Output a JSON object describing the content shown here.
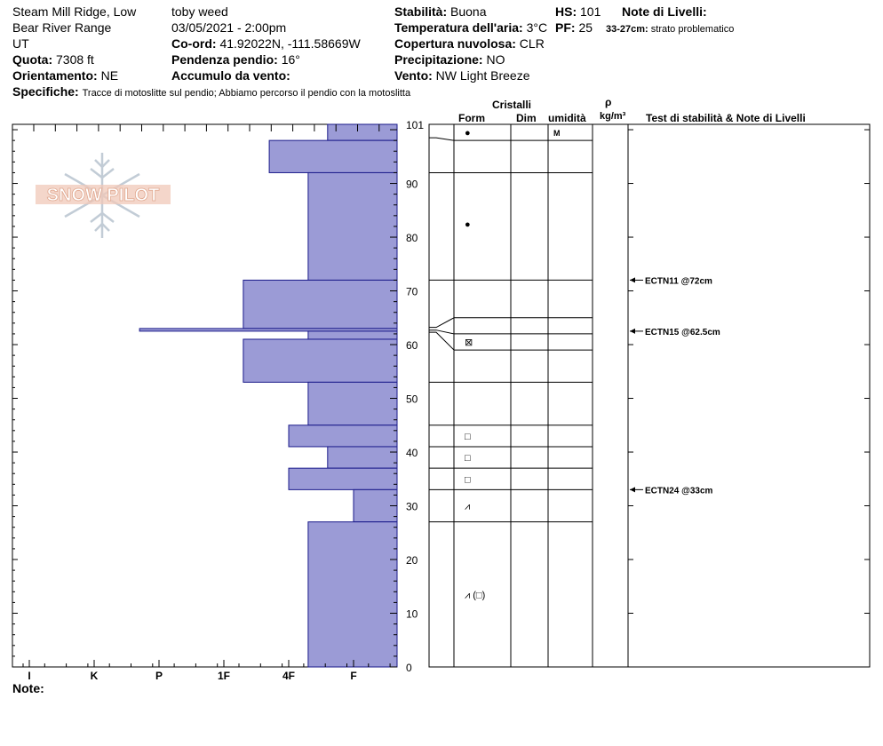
{
  "header": {
    "location": "Steam Mill Ridge, Low",
    "range": "Bear River Range",
    "state": "UT",
    "elevation_label": "Quota:",
    "elevation_value": "7308 ft",
    "aspect_label": "Orientamento:",
    "aspect_value": "NE",
    "observer": "toby weed",
    "datetime": "03/05/2021 - 2:00pm",
    "coord_label": "Co-ord:",
    "coord_value": "41.92022N, -111.58669W",
    "slope_label": "Pendenza pendio:",
    "slope_value": "16°",
    "wind_loading_label": "Accumulo da vento:",
    "wind_loading_value": "",
    "stability_label": "Stabilità:",
    "stability_value": "Buona",
    "air_temp_label": "Temperatura dell'aria:",
    "air_temp_value": "3°C",
    "cloud_label": "Copertura nuvolosa:",
    "cloud_value": "CLR",
    "precip_label": "Precipitazione:",
    "precip_value": "NO",
    "wind_label": "Vento:",
    "wind_value": "NW Light Breeze",
    "hs_label": "HS:",
    "hs_value": "101",
    "pf_label": "PF:",
    "pf_value": "25",
    "layer_notes_label": "Note di Livelli:",
    "layer_note_range": "33-27cm:",
    "layer_note_text": "strato problematico",
    "specifics_label": "Specifiche:",
    "specifics_value": "Tracce di motoslitte sul pendio; Abbiamo percorso il pendio con la motoslitta"
  },
  "columns": {
    "crystals": "Cristalli",
    "form": "Form",
    "dim": "Dim",
    "humidity": "umidità",
    "density_symbol": "ρ",
    "density_unit": "kg/m³",
    "tests": "Test di stabilità & Note di Livelli"
  },
  "footer": {
    "notes_label": "Note:"
  },
  "logo_text": "SNOW PILOT",
  "chart_data": {
    "type": "bar",
    "orientation": "horizontal",
    "y_range": [
      0,
      101
    ],
    "y_ticks": [
      0,
      10,
      20,
      30,
      40,
      50,
      60,
      70,
      80,
      90,
      101
    ],
    "hardness_scale": [
      "I",
      "K",
      "P",
      "1F",
      "4F",
      "F"
    ],
    "hardness_ticks": [
      {
        "label": "F",
        "value": 1
      },
      {
        "label": "4F",
        "value": 2
      },
      {
        "label": "1F",
        "value": 3
      },
      {
        "label": "P",
        "value": 4
      },
      {
        "label": "K",
        "value": 5
      },
      {
        "label": "I",
        "value": 6
      }
    ],
    "bar_color": "#9b9bd6",
    "layers": [
      {
        "top": 101,
        "bottom": 98,
        "hardness": 1.4
      },
      {
        "top": 98,
        "bottom": 92,
        "hardness": 2.3
      },
      {
        "top": 92,
        "bottom": 72,
        "hardness": 1.7
      },
      {
        "top": 72,
        "bottom": 63,
        "hardness": 2.7
      },
      {
        "top": 63,
        "bottom": 62.5,
        "hardness": 4.3
      },
      {
        "top": 62.5,
        "bottom": 61,
        "hardness": 1.7
      },
      {
        "top": 61,
        "bottom": 53,
        "hardness": 2.7
      },
      {
        "top": 53,
        "bottom": 45,
        "hardness": 1.7
      },
      {
        "top": 45,
        "bottom": 41,
        "hardness": 2.0
      },
      {
        "top": 41,
        "bottom": 37,
        "hardness": 1.4
      },
      {
        "top": 37,
        "bottom": 33,
        "hardness": 2.0
      },
      {
        "top": 33,
        "bottom": 27,
        "hardness": 1.0
      },
      {
        "top": 27,
        "bottom": 0,
        "hardness": 1.7
      }
    ],
    "layer_boundaries": [
      101,
      98,
      92,
      72,
      65,
      62,
      59,
      53,
      45,
      41,
      37,
      33,
      27,
      0
    ],
    "crystal_forms": [
      {
        "depth": 99.5,
        "symbol": "●"
      },
      {
        "depth": 82.5,
        "symbol": "●"
      },
      {
        "depth": 60.5,
        "symbol": "⊠"
      },
      {
        "depth": 43,
        "symbol": "□"
      },
      {
        "depth": 39,
        "symbol": "□"
      },
      {
        "depth": 35,
        "symbol": "□"
      },
      {
        "depth": 30,
        "symbol": "⩘"
      },
      {
        "depth": 13.5,
        "symbol": "⩘ (□)"
      }
    ],
    "moisture": [
      {
        "depth": 99.5,
        "value": "M"
      }
    ],
    "stability_tests": [
      {
        "depth": 72,
        "label": "ECTN11 @72cm"
      },
      {
        "depth": 62.5,
        "label": "ECTN15 @62.5cm"
      },
      {
        "depth": 33,
        "label": "ECTN24 @33cm"
      }
    ]
  }
}
